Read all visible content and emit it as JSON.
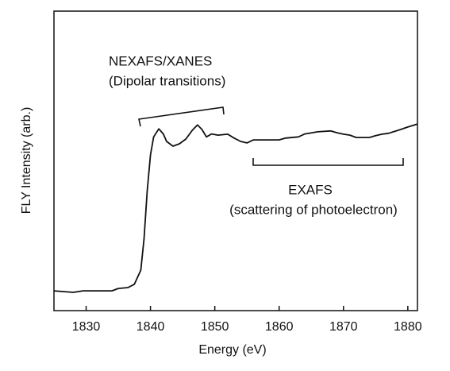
{
  "chart_data": {
    "type": "line",
    "x_label": "Energy (eV)",
    "y_label": "FLY Intensity (arb.)",
    "annotations": [
      "NEXAFS/XANES",
      "(Dipolar transitions)",
      "EXAFS",
      "(scattering of photoelectron)"
    ],
    "x": [
      1825,
      1828,
      1829.5,
      1830,
      1834,
      1835,
      1836.5,
      1837.5,
      1838.5,
      1839,
      1839.5,
      1840,
      1840.5,
      1841.3,
      1842,
      1842.5,
      1843.5,
      1844.5,
      1845.5,
      1846.5,
      1847.3,
      1848,
      1848.7,
      1849.5,
      1850.5,
      1852,
      1853,
      1854,
      1855,
      1856,
      1858,
      1860,
      1861,
      1863,
      1864,
      1866,
      1868,
      1869,
      1870,
      1871,
      1872,
      1874,
      1875,
      1876,
      1877,
      1878.5,
      1880,
      1881.5
    ],
    "series": [
      {
        "color": "#111111",
        "values": [
          6.6,
          6.1,
          6.6,
          6.6,
          6.6,
          7.4,
          7.7,
          8.8,
          13.5,
          24,
          40,
          52,
          58,
          60.7,
          59,
          56.5,
          54.9,
          55.7,
          57.3,
          60.2,
          62,
          60.5,
          58,
          59,
          58.6,
          58.9,
          57.6,
          56.5,
          56,
          57,
          57,
          57,
          57.6,
          58,
          59,
          59.7,
          60,
          59.4,
          58.9,
          58.6,
          57.8,
          57.8,
          58.4,
          58.9,
          59.2,
          60.2,
          61.3,
          62.3
        ]
      }
    ],
    "xlim": [
      1825,
      1881.5
    ],
    "ylim": [
      0,
      100
    ],
    "xticks": [
      1830,
      1840,
      1850,
      1860,
      1870,
      1880
    ]
  }
}
